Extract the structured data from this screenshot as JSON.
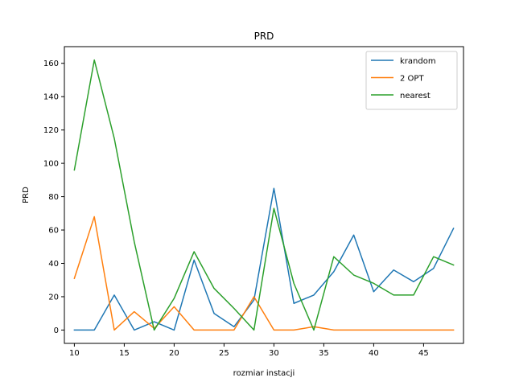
{
  "chart_data": {
    "type": "line",
    "title": "PRD",
    "xlabel": "rozmiar instacji",
    "ylabel": "PRD",
    "xlim": [
      9,
      49
    ],
    "ylim": [
      -8,
      170
    ],
    "xticks": [
      10,
      15,
      20,
      25,
      30,
      35,
      40,
      45
    ],
    "yticks": [
      0,
      20,
      40,
      60,
      80,
      100,
      120,
      140,
      160
    ],
    "grid": false,
    "legend_position": "top-right",
    "x": [
      10,
      12,
      14,
      16,
      18,
      20,
      22,
      24,
      26,
      28,
      30,
      32,
      34,
      36,
      38,
      40,
      42,
      44,
      46,
      48
    ],
    "series": [
      {
        "name": "krandom",
        "color": "#1f77b4",
        "values": [
          0,
          0,
          21,
          0,
          5,
          0,
          42,
          10,
          2,
          18,
          85,
          16,
          21,
          35,
          57,
          23,
          36,
          29,
          37,
          61
        ]
      },
      {
        "name": "2 OPT",
        "color": "#ff7f0e",
        "values": [
          31,
          68,
          0,
          11,
          1,
          14,
          0,
          0,
          0,
          20,
          0,
          0,
          2,
          0,
          0,
          0,
          0,
          0,
          0,
          0
        ]
      },
      {
        "name": "nearest",
        "color": "#2ca02c",
        "values": [
          96,
          162,
          115,
          53,
          0,
          19,
          47,
          25,
          13,
          0,
          73,
          28,
          0,
          44,
          33,
          28,
          21,
          21,
          44,
          39
        ]
      }
    ]
  }
}
